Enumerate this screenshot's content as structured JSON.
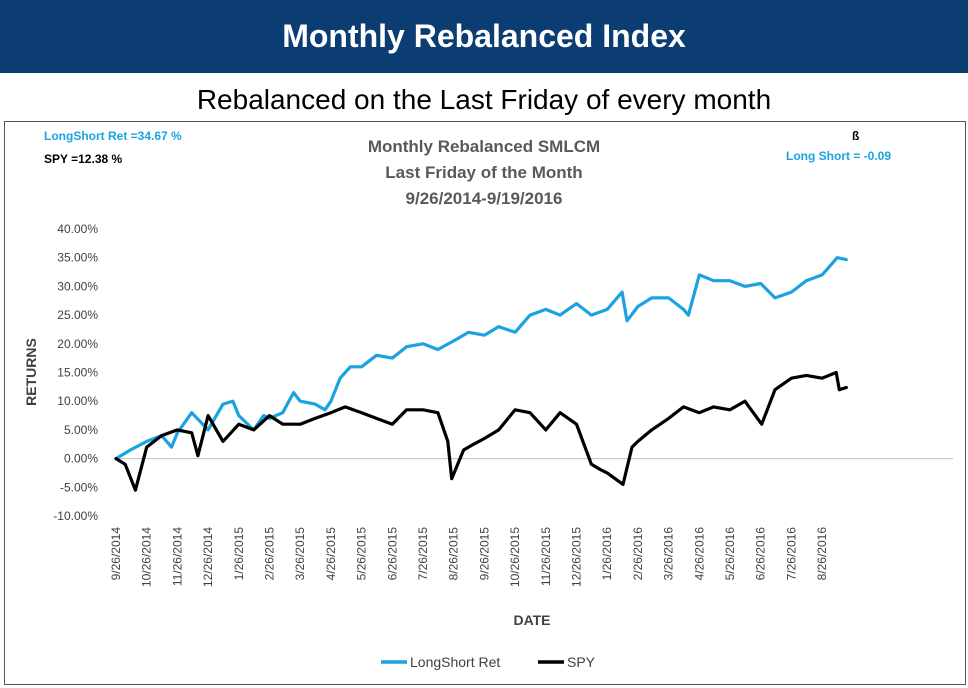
{
  "banner": {
    "title": "Monthly Rebalanced Index"
  },
  "subtitle": "Rebalanced on the Last Friday of every month",
  "stats": {
    "longshort_ret": "LongShort Ret =34.67 %",
    "spy_ret": "SPY =12.38 %",
    "beta_symbol": "ß",
    "beta_value": "Long Short = -0.09"
  },
  "colors": {
    "banner": "#0b3d73",
    "longshort": "#1aa3e0",
    "spy": "#000000",
    "title_text": "#595959"
  },
  "chart_data": {
    "type": "line",
    "title_lines": [
      "Monthly Rebalanced SMLCM",
      "Last Friday of the Month",
      "9/26/2014-9/19/2016"
    ],
    "xlabel": "DATE",
    "ylabel": "RETURNS",
    "ylim": [
      -10,
      40
    ],
    "yticks": [
      "-10.00%",
      "-5.00%",
      "0.00%",
      "5.00%",
      "10.00%",
      "15.00%",
      "20.00%",
      "25.00%",
      "30.00%",
      "35.00%",
      "40.00%"
    ],
    "x_tick_labels": [
      "9/26/2014",
      "10/26/2014",
      "11/26/2014",
      "12/26/2014",
      "1/26/2015",
      "2/26/2015",
      "3/26/2015",
      "4/26/2015",
      "5/26/2015",
      "6/26/2015",
      "7/26/2015",
      "8/26/2015",
      "9/26/2015",
      "10/26/2015",
      "11/26/2015",
      "12/26/2015",
      "1/26/2016",
      "2/26/2016",
      "3/26/2016",
      "4/26/2016",
      "5/26/2016",
      "6/26/2016",
      "7/26/2016",
      "8/26/2016"
    ],
    "legend_position": "bottom",
    "grid": false,
    "series": [
      {
        "name": "LongShort Ret",
        "color": "#1aa3e0",
        "x": [
          "9/26/2014",
          "10/10/2014",
          "10/26/2014",
          "11/10/2014",
          "11/20/2014",
          "11/26/2014",
          "12/10/2014",
          "12/26/2014",
          "1/10/2015",
          "1/20/2015",
          "1/26/2015",
          "2/10/2015",
          "2/20/2015",
          "2/26/2015",
          "3/10/2015",
          "3/20/2015",
          "3/26/2015",
          "4/10/2015",
          "4/20/2015",
          "4/26/2015",
          "5/5/2015",
          "5/15/2015",
          "5/26/2015",
          "6/10/2015",
          "6/26/2015",
          "7/10/2015",
          "7/26/2015",
          "8/10/2015",
          "8/26/2015",
          "9/10/2015",
          "9/26/2015",
          "10/10/2015",
          "10/26/2015",
          "11/10/2015",
          "11/26/2015",
          "12/10/2015",
          "12/26/2015",
          "1/10/2016",
          "1/26/2016",
          "2/10/2016",
          "2/15/2016",
          "2/26/2016",
          "3/10/2016",
          "3/26/2016",
          "4/10/2016",
          "4/15/2016",
          "4/26/2016",
          "5/10/2016",
          "5/26/2016",
          "6/10/2016",
          "6/26/2016",
          "7/10/2016",
          "7/26/2016",
          "8/10/2016",
          "8/26/2016",
          "9/10/2016",
          "9/19/2016"
        ],
        "values": [
          0.0,
          1.5,
          3.0,
          4.0,
          2.0,
          4.5,
          8.0,
          5.0,
          9.5,
          10.0,
          7.5,
          5.0,
          7.5,
          7.0,
          8.0,
          11.5,
          10.0,
          9.5,
          8.5,
          10.0,
          14.0,
          16.0,
          16.0,
          18.0,
          17.5,
          19.5,
          20.0,
          19.0,
          20.5,
          22.0,
          21.5,
          23.0,
          22.0,
          25.0,
          26.0,
          25.0,
          27.0,
          25.0,
          26.0,
          29.0,
          24.0,
          26.5,
          28.0,
          28.0,
          26.0,
          25.0,
          32.0,
          31.0,
          31.0,
          30.0,
          30.5,
          28.0,
          29.0,
          31.0,
          32.0,
          35.0,
          34.67
        ]
      },
      {
        "name": "SPY",
        "color": "#000000",
        "x": [
          "9/26/2014",
          "10/5/2014",
          "10/15/2014",
          "10/26/2014",
          "11/10/2014",
          "11/26/2014",
          "12/10/2014",
          "12/16/2014",
          "12/26/2014",
          "1/10/2015",
          "1/26/2015",
          "2/10/2015",
          "2/26/2015",
          "3/10/2015",
          "3/26/2015",
          "4/10/2015",
          "4/26/2015",
          "5/10/2015",
          "5/26/2015",
          "6/10/2015",
          "6/26/2015",
          "7/10/2015",
          "7/26/2015",
          "8/10/2015",
          "8/20/2015",
          "8/24/2015",
          "9/5/2015",
          "9/15/2015",
          "9/26/2015",
          "10/10/2015",
          "10/26/2015",
          "11/10/2015",
          "11/26/2015",
          "12/10/2015",
          "12/26/2015",
          "1/10/2016",
          "1/20/2016",
          "1/26/2016",
          "2/11/2016",
          "2/20/2016",
          "2/26/2016",
          "3/10/2016",
          "3/26/2016",
          "4/10/2016",
          "4/26/2016",
          "5/10/2016",
          "5/26/2016",
          "6/10/2016",
          "6/27/2016",
          "7/10/2016",
          "7/26/2016",
          "8/10/2016",
          "8/26/2016",
          "9/9/2016",
          "9/12/2016",
          "9/19/2016"
        ],
        "values": [
          0.0,
          -1.0,
          -5.5,
          2.0,
          4.0,
          5.0,
          4.5,
          0.5,
          7.5,
          3.0,
          6.0,
          5.0,
          7.5,
          6.0,
          6.0,
          7.0,
          8.0,
          9.0,
          8.0,
          7.0,
          6.0,
          8.5,
          8.5,
          8.0,
          3.0,
          -3.5,
          1.5,
          2.5,
          3.5,
          5.0,
          8.5,
          8.0,
          5.0,
          8.0,
          6.0,
          -1.0,
          -2.0,
          -2.5,
          -4.5,
          2.0,
          3.0,
          5.0,
          7.0,
          9.0,
          8.0,
          9.0,
          8.5,
          10.0,
          6.0,
          12.0,
          14.0,
          14.5,
          14.0,
          15.0,
          12.0,
          12.38
        ]
      }
    ]
  }
}
